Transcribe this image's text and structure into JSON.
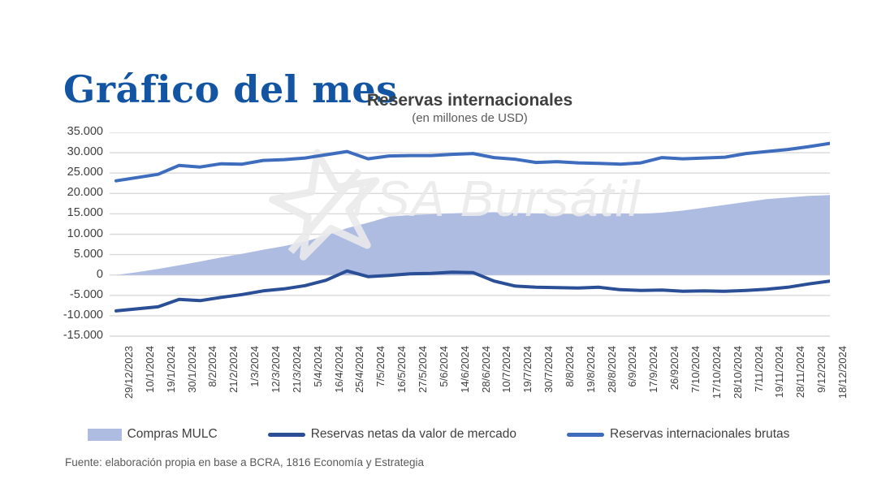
{
  "page": {
    "title": "Gráfico del mes",
    "source_note": "Fuente: elaboración propia en base a BCRA, 1816 Economía y Estrategia"
  },
  "watermark": {
    "text": "TSA Bursátil"
  },
  "colors": {
    "title_blue": "#1355A3",
    "text_dark": "#3F3F3F",
    "text_medium": "#595959",
    "grid": "#D9D9D9",
    "watermark": "#EAEAEC",
    "mulc_fill": "#AFBCE2",
    "netas_line": "#2A4F96",
    "brutas_line": "#3E6DBE"
  },
  "chart_data": {
    "type": "line",
    "title": "Reservas internacionales",
    "subtitle": "(en millones de USD)",
    "xlabel": "",
    "ylabel": "",
    "ylim": [
      -15000,
      35000
    ],
    "y_tick_step": 5000,
    "y_tick_labels": [
      "35.000",
      "30.000",
      "25.000",
      "20.000",
      "15.000",
      "10.000",
      "5.000",
      "0",
      "-5.000",
      "-10.000",
      "-15.000"
    ],
    "grid": true,
    "legend_position": "bottom",
    "categories": [
      "29/12/2023",
      "10/1/2024",
      "19/1/2024",
      "30/1/2024",
      "8/2/2024",
      "21/2/2024",
      "1/3/2024",
      "12/3/2024",
      "21/3/2024",
      "5/4/2024",
      "16/4/2024",
      "25/4/2024",
      "7/5/2024",
      "16/5/2024",
      "27/5/2024",
      "5/6/2024",
      "14/6/2024",
      "28/6/2024",
      "10/7/2024",
      "19/7/2024",
      "30/7/2024",
      "8/8/2024",
      "19/8/2024",
      "28/8/2024",
      "6/9/2024",
      "17/9/2024",
      "26/92024",
      "7/10/2024",
      "17/10/2024",
      "28/10/2024",
      "7/11/2024",
      "19/11/2024",
      "28/11/2024",
      "9/12/2024",
      "18/12/2024"
    ],
    "series": [
      {
        "name": "Compras MULC",
        "type": "area",
        "color": "#AFBCE2",
        "values": [
          0,
          700,
          1500,
          2400,
          3300,
          4300,
          5200,
          6200,
          7100,
          8200,
          9700,
          11500,
          12800,
          14300,
          14700,
          14900,
          15100,
          15300,
          15400,
          15200,
          15100,
          15000,
          14900,
          15000,
          15100,
          15000,
          15300,
          15800,
          16500,
          17200,
          17900,
          18600,
          19000,
          19400,
          19600
        ]
      },
      {
        "name": "Reservas netas da valor de mercado",
        "type": "line",
        "color": "#2A4F96",
        "values": [
          -8800,
          -8300,
          -7800,
          -6000,
          -6300,
          -5500,
          -4800,
          -3900,
          -3400,
          -2600,
          -1300,
          1000,
          -400,
          -100,
          300,
          400,
          700,
          600,
          -1500,
          -2700,
          -3000,
          -3100,
          -3200,
          -3000,
          -3600,
          -3800,
          -3700,
          -4000,
          -3900,
          -4000,
          -3800,
          -3500,
          -3000,
          -2200,
          -1500
        ]
      },
      {
        "name": "Reservas internacionales brutas",
        "type": "line",
        "color": "#3E6DBE",
        "values": [
          23100,
          23900,
          24700,
          26900,
          26500,
          27300,
          27200,
          28100,
          28300,
          28700,
          29500,
          30300,
          28500,
          29200,
          29300,
          29300,
          29600,
          29800,
          28800,
          28400,
          27600,
          27800,
          27500,
          27400,
          27200,
          27500,
          28800,
          28500,
          28700,
          28900,
          29800,
          30300,
          30800,
          31500,
          32300
        ]
      }
    ]
  }
}
